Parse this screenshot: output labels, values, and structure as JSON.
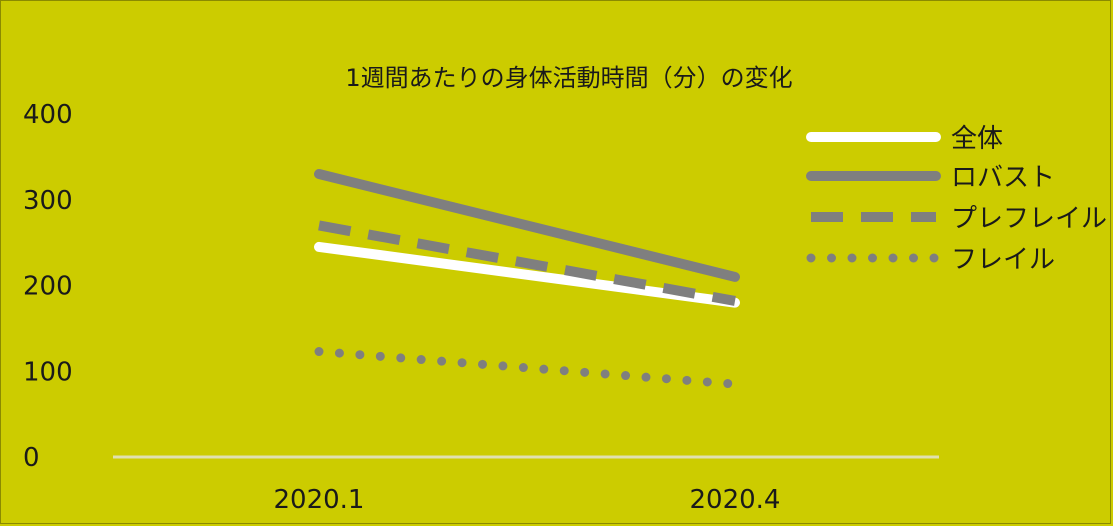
{
  "chart_data": {
    "type": "line",
    "title": "1週間あたりの身体活動時間（分）の変化",
    "categories": [
      "2020.1",
      "2020.4"
    ],
    "ylim": [
      0,
      400
    ],
    "yticks": [
      0,
      100,
      200,
      300,
      400
    ],
    "grid": false,
    "legend_position": "right",
    "series": [
      {
        "name": "全体",
        "values": [
          245,
          180
        ],
        "color": "#ffffff",
        "style": "solid"
      },
      {
        "name": "ロバスト",
        "values": [
          330,
          210
        ],
        "color": "#7f7f7f",
        "style": "solid"
      },
      {
        "name": "プレフレイル",
        "values": [
          270,
          182
        ],
        "color": "#7f7f7f",
        "style": "dashed"
      },
      {
        "name": "フレイル",
        "values": [
          123,
          85
        ],
        "color": "#7f7f7f",
        "style": "dotted"
      }
    ],
    "colors": {
      "background": "#cccc00",
      "axis": "#e0e0b0"
    }
  }
}
